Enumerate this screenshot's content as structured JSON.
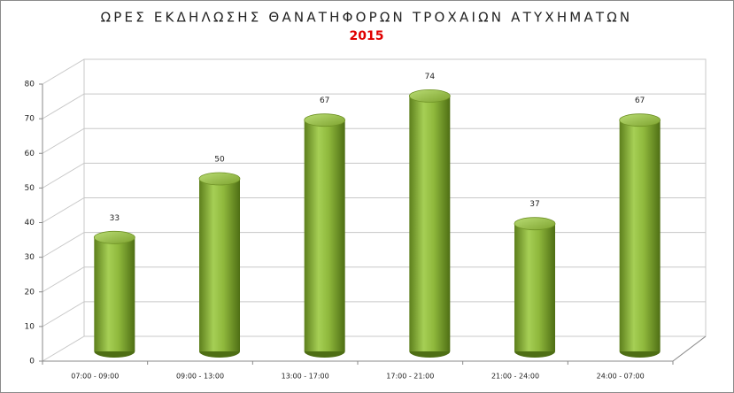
{
  "chart_data": {
    "type": "bar",
    "title": "ΩΡΕΣ ΕΚΔΗΛΩΣΗΣ ΘΑΝΑΤΗΦΟΡΩΝ ΤΡΟΧΑΙΩΝ ΑΤΥΧΗΜΑΤΩΝ",
    "subtitle": "2015",
    "categories": [
      "07:00 - 09:00",
      "09:00 - 13:00",
      "13:00 - 17:00",
      "17:00 - 21:00",
      "21:00 - 24:00",
      "24:00 - 07:00"
    ],
    "values": [
      33,
      50,
      67,
      74,
      37,
      67
    ],
    "color": "#8db33a",
    "ylim": [
      0,
      80
    ],
    "yticks": [
      0,
      10,
      20,
      30,
      40,
      50,
      60,
      70,
      80
    ],
    "grid": true
  }
}
